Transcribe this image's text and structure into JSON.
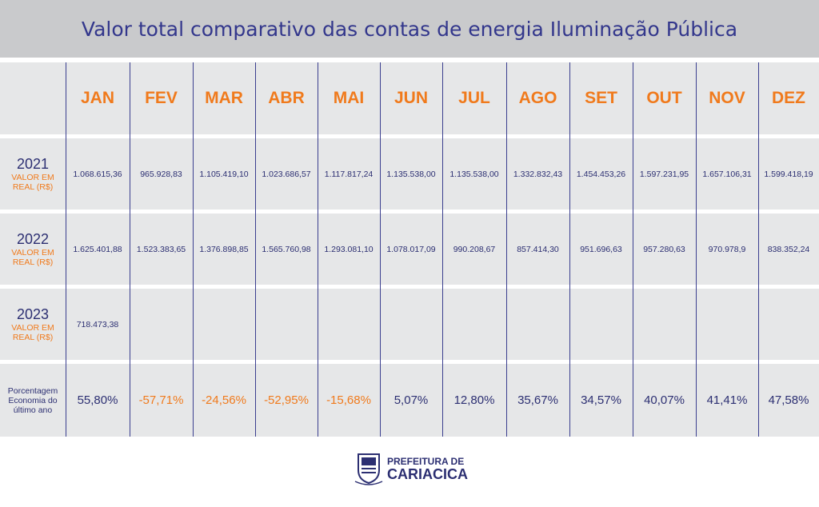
{
  "header": {
    "title": "Valor total comparativo das contas de energia Iluminação Pública"
  },
  "table": {
    "columns": [
      "JAN",
      "FEV",
      "MAR",
      "ABR",
      "MAI",
      "JUN",
      "JUL",
      "AGO",
      "SET",
      "OUT",
      "NOV",
      "DEZ"
    ],
    "rows": [
      {
        "year": "2021",
        "label": "VALOR EM REAL (R$)",
        "values": [
          "1.068.615,36",
          "965.928,83",
          "1.105.419,10",
          "1.023.686,57",
          "1.117.817,24",
          "1.135.538,00",
          "1.135.538,00",
          "1.332.832,43",
          "1.454.453,26",
          "1.597.231,95",
          "1.657.106,31",
          "1.599.418,19"
        ]
      },
      {
        "year": "2022",
        "label": "VALOR EM REAL (R$)",
        "values": [
          "1.625.401,88",
          "1.523.383,65",
          "1.376.898,85",
          "1.565.760,98",
          "1.293.081,10",
          "1.078.017,09",
          "990.208,67",
          "857.414,30",
          "951.696,63",
          "957.280,63",
          "970.978,9",
          "838.352,24"
        ]
      },
      {
        "year": "2023",
        "label": "VALOR EM REAL (R$)",
        "values": [
          "718.473,38"
        ]
      }
    ],
    "percent_row": {
      "label": "Porcentagem Economia do último ano",
      "values": [
        "55,80%",
        "-57,71%",
        "-24,56%",
        "-52,95%",
        "-15,68%",
        "5,07%",
        "12,80%",
        "35,67%",
        "34,57%",
        "40,07%",
        "41,41%",
        "47,58%"
      ]
    }
  },
  "footer": {
    "line1": "PREFEITURA DE",
    "line2": "CARIACICA"
  }
}
